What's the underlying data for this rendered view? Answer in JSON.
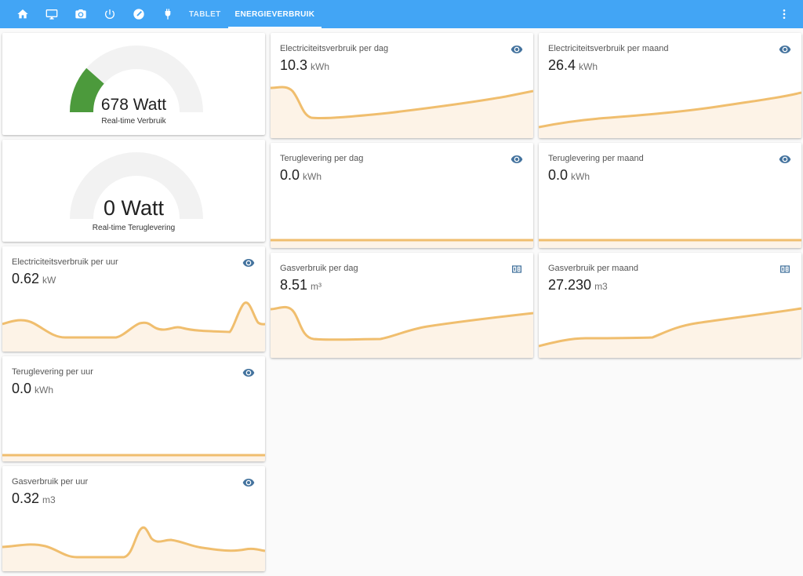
{
  "topbar": {
    "icons": [
      "home-icon",
      "monitor-icon",
      "camera-icon",
      "power-icon",
      "compass-icon",
      "plug-icon"
    ],
    "tabs": [
      {
        "label": "TABLET",
        "active": false
      },
      {
        "label": "ENERGIEVERBRUIK",
        "active": true
      }
    ],
    "menu_icon": "dots-vertical-icon",
    "color": "#42a5f5"
  },
  "gauges": [
    {
      "value": "678 Watt",
      "label": "Real-time Verbruik",
      "fraction": 0.23,
      "color": "#4c9a3c"
    },
    {
      "value": "0 Watt",
      "label": "Real-time Teruglevering",
      "fraction": 0.0,
      "color": "#4c9a3c"
    }
  ],
  "cards": {
    "elec_uur": {
      "title": "Electriciteitsverbruik per uur",
      "value": "0.62",
      "unit": "kW",
      "icon": "eye-icon"
    },
    "terug_uur": {
      "title": "Teruglevering per uur",
      "value": "0.0",
      "unit": "kWh",
      "icon": "eye-icon"
    },
    "gas_uur": {
      "title": "Gasverbruik per uur",
      "value": "0.32",
      "unit": "m3",
      "icon": "eye-icon"
    },
    "elec_dag": {
      "title": "Electriciteitsverbruik per dag",
      "value": "10.3",
      "unit": "kWh",
      "icon": "eye-icon"
    },
    "elec_maand": {
      "title": "Electriciteitsverbruik per maand",
      "value": "26.4",
      "unit": "kWh",
      "icon": "eye-icon"
    },
    "terug_dag": {
      "title": "Teruglevering per dag",
      "value": "0.0",
      "unit": "kWh",
      "icon": "eye-icon"
    },
    "terug_maand": {
      "title": "Teruglevering per maand",
      "value": "0.0",
      "unit": "kWh",
      "icon": "eye-icon"
    },
    "gas_dag": {
      "title": "Gasverbruik per dag",
      "value": "8.51",
      "unit": "m³",
      "icon": "meter-icon"
    },
    "gas_maand": {
      "title": "Gasverbruik per maand",
      "value": "27.230",
      "unit": "m3",
      "icon": "meter-icon"
    }
  },
  "colors": {
    "line": "#f0be6e",
    "fill": "#fdf3e7",
    "icon": "#44739e",
    "gauge_bg": "#f2f2f2"
  }
}
